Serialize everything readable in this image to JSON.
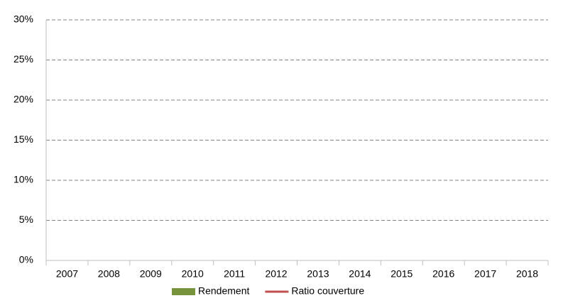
{
  "chart_data": {
    "type": "bar",
    "categories": [
      "2007",
      "2008",
      "2009",
      "2010",
      "2011",
      "2012",
      "2013",
      "2014",
      "2015",
      "2016",
      "2017",
      "2018"
    ],
    "series": [
      {
        "name": "Rendement",
        "type": "bar",
        "color": "#77933c",
        "values": [
          null,
          null,
          null,
          null,
          null,
          null,
          null,
          null,
          null,
          null,
          null,
          null
        ]
      },
      {
        "name": "Ratio couverture",
        "type": "line",
        "color": "#c0504d",
        "values": [
          null,
          null,
          null,
          null,
          null,
          null,
          null,
          null,
          null,
          null,
          null,
          null
        ]
      }
    ],
    "ylim": [
      0,
      30
    ],
    "yticks": [
      {
        "value": 0,
        "label": "0%"
      },
      {
        "value": 5,
        "label": "5%"
      },
      {
        "value": 10,
        "label": "10%"
      },
      {
        "value": 15,
        "label": "15%"
      },
      {
        "value": 20,
        "label": "20%"
      },
      {
        "value": 25,
        "label": "25%"
      },
      {
        "value": 30,
        "label": "30%"
      }
    ],
    "grid": true,
    "legend": "bottom"
  }
}
